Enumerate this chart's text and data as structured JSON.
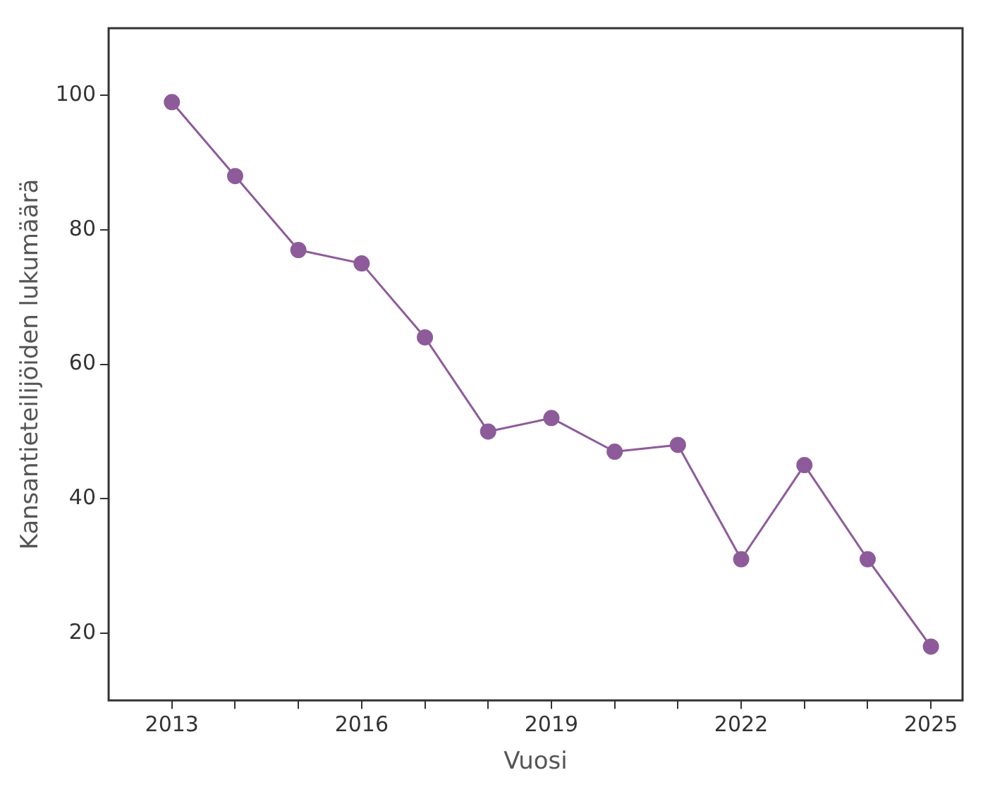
{
  "chart_data": {
    "type": "line",
    "xlabel": "Vuosi",
    "ylabel": "Kansantieteilijöiden lukumäärä",
    "x": [
      2013,
      2014,
      2015,
      2016,
      2017,
      2018,
      2019,
      2020,
      2021,
      2022,
      2023,
      2024,
      2025
    ],
    "series": [
      {
        "color": "#8e5b9a",
        "values": [
          99,
          88,
          77,
          75,
          64,
          50,
          52,
          47,
          48,
          31,
          45,
          31,
          18
        ]
      }
    ],
    "xlim": [
      2012,
      2025.5
    ],
    "xticks": [
      2013,
      {
        "value": 2014,
        "label": null
      },
      {
        "value": 2015,
        "label": null
      },
      2016,
      {
        "value": 2017,
        "label": null
      },
      {
        "value": 2018,
        "label": null
      },
      2019,
      {
        "value": 2020,
        "label": null
      },
      {
        "value": 2021,
        "label": null
      },
      2022,
      {
        "value": 2023,
        "label": null
      },
      {
        "value": 2024,
        "label": null
      },
      2025
    ],
    "ylim": [
      10,
      110
    ],
    "yticks": [
      20,
      40,
      60,
      80,
      100
    ],
    "grid": false,
    "legend": false,
    "marker": "circle",
    "line_style": "solid"
  }
}
